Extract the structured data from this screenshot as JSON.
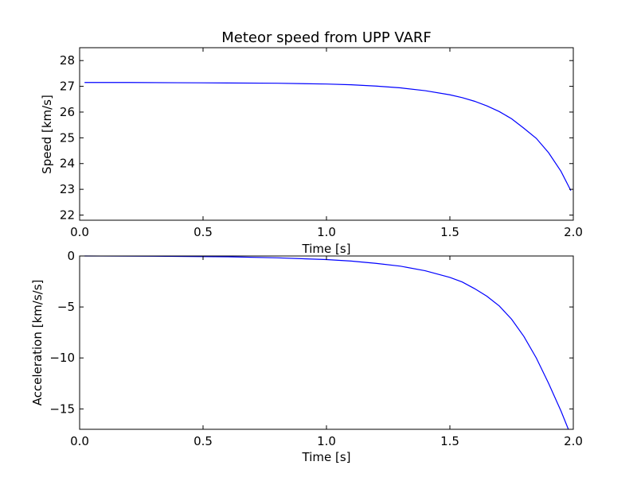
{
  "figure": {
    "title": "Meteor speed from  UPP VARF"
  },
  "chart_data": [
    {
      "type": "line",
      "title": "Meteor speed from  UPP VARF",
      "xlabel": "Time [s]",
      "ylabel": "Speed [km/s]",
      "xlim": [
        0.0,
        2.0
      ],
      "ylim": [
        21.8,
        28.5
      ],
      "x_ticks": [
        "0.0",
        "0.5",
        "1.0",
        "1.5",
        "2.0"
      ],
      "y_ticks": [
        22,
        23,
        24,
        25,
        26,
        27,
        28
      ],
      "grid": false,
      "color": "#0000ff",
      "series": [
        {
          "x": [
            0.02,
            0.2,
            0.4,
            0.6,
            0.8,
            1.0,
            1.1,
            1.2,
            1.3,
            1.4,
            1.5,
            1.55,
            1.6,
            1.65,
            1.7,
            1.75,
            1.8,
            1.85,
            1.9,
            1.95,
            1.99
          ],
          "values": [
            27.15,
            27.15,
            27.14,
            27.13,
            27.12,
            27.09,
            27.06,
            27.01,
            26.94,
            26.83,
            26.67,
            26.56,
            26.42,
            26.24,
            26.02,
            25.74,
            25.37,
            24.98,
            24.42,
            23.7,
            22.95
          ]
        }
      ]
    },
    {
      "type": "line",
      "title": "",
      "xlabel": "Time [s]",
      "ylabel": "Acceleration [km/s/s]",
      "xlim": [
        0.0,
        2.0
      ],
      "ylim": [
        -17.0,
        0.0
      ],
      "x_ticks": [
        "0.0",
        "0.5",
        "1.0",
        "1.5",
        "2.0"
      ],
      "y_ticks": [
        "0",
        "−5",
        "−10",
        "−15"
      ],
      "y_tick_values": [
        0,
        -5,
        -10,
        -15
      ],
      "grid": false,
      "color": "#0000ff",
      "series": [
        {
          "x": [
            0.02,
            0.3,
            0.6,
            0.8,
            1.0,
            1.1,
            1.2,
            1.3,
            1.4,
            1.5,
            1.55,
            1.6,
            1.65,
            1.7,
            1.75,
            1.8,
            1.85,
            1.9,
            1.95,
            1.98
          ],
          "values": [
            0.0,
            -0.02,
            -0.08,
            -0.18,
            -0.35,
            -0.5,
            -0.72,
            -1.0,
            -1.45,
            -2.1,
            -2.55,
            -3.2,
            -3.95,
            -4.9,
            -6.2,
            -7.9,
            -10.0,
            -12.5,
            -15.2,
            -17.0
          ]
        }
      ]
    }
  ]
}
